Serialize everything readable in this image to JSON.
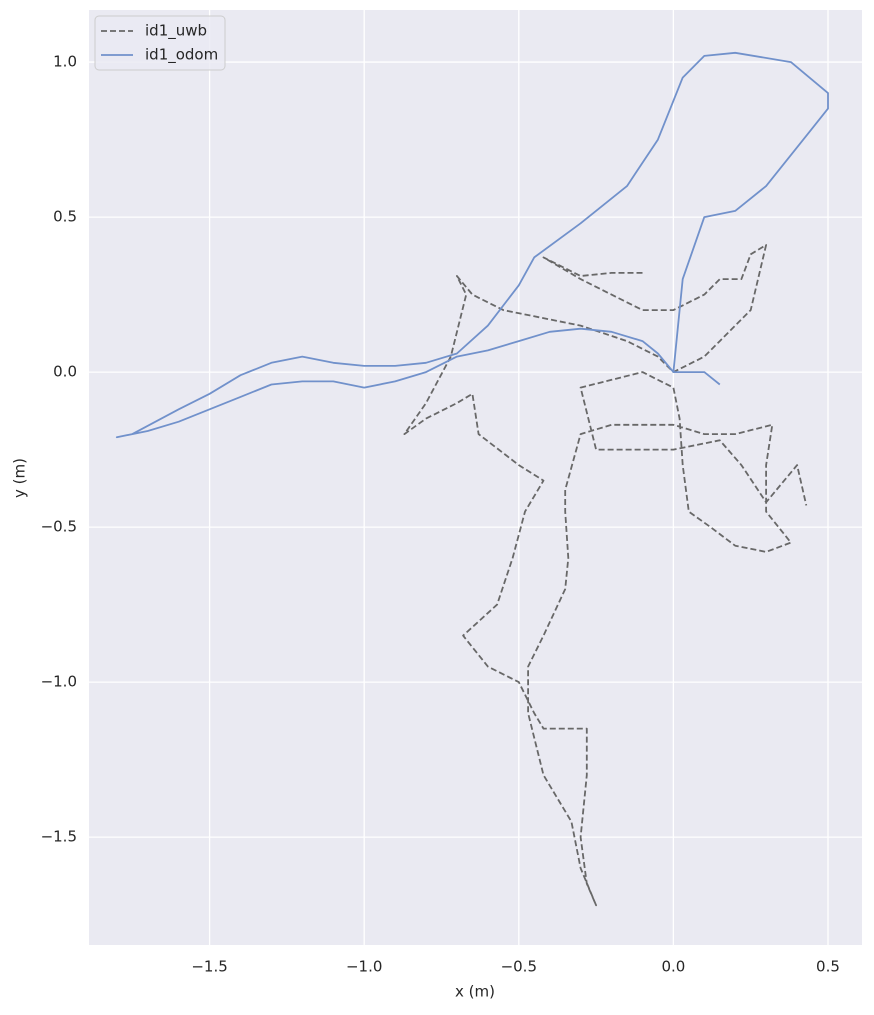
{
  "chart_data": {
    "type": "line",
    "xlabel": "x (m)",
    "ylabel": "y (m)",
    "xlim": [
      -1.89,
      0.61
    ],
    "ylim": [
      -1.848,
      1.168
    ],
    "xticks": [
      {
        "value": -1.5,
        "label": "−1.5"
      },
      {
        "value": -1.0,
        "label": "−1.0"
      },
      {
        "value": -0.5,
        "label": "−0.5"
      },
      {
        "value": 0.0,
        "label": "0.0"
      },
      {
        "value": 0.5,
        "label": "0.5"
      }
    ],
    "yticks": [
      {
        "value": -1.5,
        "label": "−1.5"
      },
      {
        "value": -1.0,
        "label": "−1.0"
      },
      {
        "value": -0.5,
        "label": "−0.5"
      },
      {
        "value": 0.0,
        "label": "0.0"
      },
      {
        "value": 0.5,
        "label": "0.5"
      },
      {
        "value": 1.0,
        "label": "1.0"
      }
    ],
    "grid": true,
    "legend": "upper left",
    "series": [
      {
        "name": "id1_uwb",
        "color": "#686868",
        "linestyle": "dashed",
        "x": [
          -0.1,
          -0.2,
          -0.3,
          -0.42,
          -0.3,
          -0.2,
          -0.1,
          0.0,
          0.1,
          0.15,
          0.22,
          0.25,
          0.3,
          0.25,
          0.15,
          0.1,
          0.0,
          -0.05,
          -0.15,
          -0.3,
          -0.45,
          -0.55,
          -0.65,
          -0.7,
          -0.67,
          -0.72,
          -0.8,
          -0.87,
          -0.8,
          -0.7,
          -0.65,
          -0.63,
          -0.5,
          -0.42,
          -0.48,
          -0.52,
          -0.57,
          -0.68,
          -0.6,
          -0.5,
          -0.45,
          -0.42,
          -0.28,
          -0.28,
          -0.3,
          -0.28,
          -0.25,
          -0.3,
          -0.33,
          -0.42,
          -0.47,
          -0.47,
          -0.42,
          -0.35,
          -0.34,
          -0.35,
          -0.35,
          -0.3,
          -0.2,
          0.0,
          0.1,
          0.2,
          0.32,
          0.3,
          0.3,
          0.38,
          0.3,
          0.2,
          0.12,
          0.05,
          0.03,
          0.02,
          0.0,
          -0.1,
          -0.3,
          -0.25,
          0.0,
          0.15,
          0.22,
          0.3,
          0.4,
          0.43
        ],
        "values": [
          0.32,
          0.32,
          0.31,
          0.37,
          0.3,
          0.25,
          0.2,
          0.2,
          0.25,
          0.3,
          0.3,
          0.38,
          0.41,
          0.2,
          0.1,
          0.05,
          0.0,
          0.05,
          0.1,
          0.15,
          0.18,
          0.2,
          0.25,
          0.31,
          0.25,
          0.05,
          -0.1,
          -0.2,
          -0.15,
          -0.1,
          -0.07,
          -0.2,
          -0.3,
          -0.35,
          -0.45,
          -0.6,
          -0.75,
          -0.85,
          -0.95,
          -1.0,
          -1.1,
          -1.15,
          -1.15,
          -1.3,
          -1.5,
          -1.65,
          -1.72,
          -1.6,
          -1.45,
          -1.3,
          -1.1,
          -0.95,
          -0.85,
          -0.7,
          -0.6,
          -0.45,
          -0.38,
          -0.2,
          -0.17,
          -0.17,
          -0.2,
          -0.2,
          -0.17,
          -0.3,
          -0.45,
          -0.55,
          -0.58,
          -0.56,
          -0.5,
          -0.45,
          -0.3,
          -0.15,
          -0.05,
          0.0,
          -0.05,
          -0.25,
          -0.25,
          -0.22,
          -0.3,
          -0.42,
          -0.3,
          -0.43
        ]
      },
      {
        "name": "id1_odom",
        "color": "#7191cb",
        "linestyle": "solid",
        "x": [
          0.15,
          0.1,
          0.0,
          0.03,
          0.1,
          0.2,
          0.3,
          0.42,
          0.5,
          0.5,
          0.38,
          0.2,
          0.1,
          0.03,
          -0.05,
          -0.15,
          -0.3,
          -0.45,
          -0.5,
          -0.6,
          -0.7,
          -0.8,
          -0.9,
          -1.0,
          -1.1,
          -1.2,
          -1.3,
          -1.4,
          -1.5,
          -1.6,
          -1.75,
          -1.8,
          -1.7,
          -1.6,
          -1.5,
          -1.4,
          -1.3,
          -1.2,
          -1.1,
          -1.0,
          -0.9,
          -0.8,
          -0.7,
          -0.6,
          -0.5,
          -0.4,
          -0.3,
          -0.2,
          -0.1,
          -0.05,
          0.0,
          0.1,
          0.15
        ],
        "values": [
          -0.04,
          0.0,
          0.0,
          0.3,
          0.5,
          0.52,
          0.6,
          0.75,
          0.85,
          0.9,
          1.0,
          1.03,
          1.02,
          0.95,
          0.75,
          0.6,
          0.48,
          0.37,
          0.28,
          0.15,
          0.06,
          0.03,
          0.02,
          0.02,
          0.03,
          0.05,
          0.03,
          -0.01,
          -0.07,
          -0.12,
          -0.2,
          -0.21,
          -0.19,
          -0.16,
          -0.12,
          -0.08,
          -0.04,
          -0.03,
          -0.03,
          -0.05,
          -0.03,
          0.0,
          0.05,
          0.07,
          0.1,
          0.13,
          0.14,
          0.13,
          0.1,
          0.06,
          0.0,
          0.0,
          -0.04
        ]
      }
    ]
  }
}
